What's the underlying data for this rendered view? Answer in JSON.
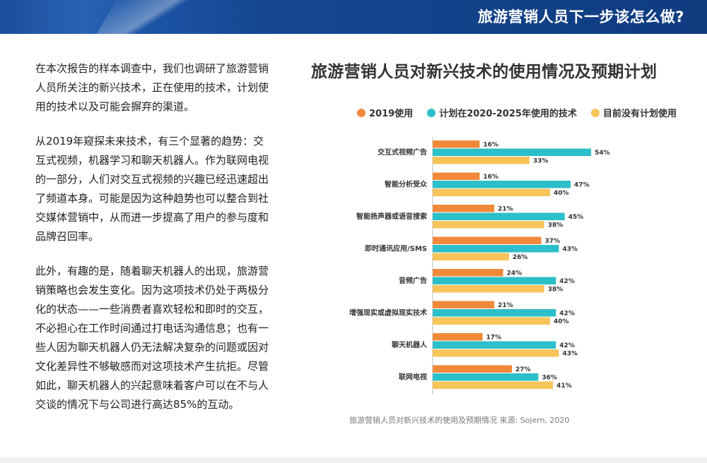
{
  "header": {
    "title": "旅游营销人员下一步该怎么做?"
  },
  "intro": {
    "paragraphs": [
      "在本次报告的样本调查中，我们也调研了旅游营销\n人员所关注的新兴技术，正在使用的技术，计划使\n用的技术以及可能会摒弃的渠道。",
      "从2019年窥探未来技术，有三个显著的趋势：交\n互式视频，机器学习和聊天机器人。作为联网电视\n的一部分，人们对交互式视频的兴趣已经迅速超出\n了频道本身。可能是因为这种趋势也可以整合到社\n交媒体营销中，从而进一步提高了用户的参与度和\n品牌召回率。",
      "此外，有趣的是，随着聊天机器人的出现，旅游营\n销策略也会发生变化。因为这项技术仍处于两极分\n化的状态——一些消费者喜欢轻松和即时的交互，\n不必担心在工作时间通过打电话沟通信息；也有一\n些人因为聊天机器人仍无法解决复杂的问题或因对\n文化差异性不够敏感而对这项技术产生抗拒。尽管\n如此，聊天机器人的兴起意味着客户可以在不与人\n交谈的情况下与公司进行高达85%的互动。"
    ]
  },
  "chart_data": {
    "type": "bar",
    "orientation": "horizontal",
    "title": "旅游营销人员对新兴技术的使用情况及预期计划",
    "categories": [
      "交互式视频广告",
      "智能分析受众",
      "智能扬声器或语音搜索",
      "即时通讯应用/SMS",
      "音频广告",
      "增强现实或虚拟现实技术",
      "聊天机器人",
      "联网电视"
    ],
    "series": [
      {
        "name": "2019使用",
        "color": "#f08a3a",
        "values": [
          16,
          16,
          21,
          37,
          24,
          21,
          17,
          27
        ]
      },
      {
        "name": "计划在2020-2025年使用的技术",
        "color": "#2bbfc9",
        "values": [
          54,
          47,
          45,
          43,
          42,
          42,
          42,
          36
        ]
      },
      {
        "name": "目前没有计划使用",
        "color": "#f7c45a",
        "values": [
          33,
          40,
          38,
          26,
          38,
          40,
          43,
          41
        ]
      }
    ],
    "value_suffix": "%",
    "xlim": [
      0,
      100
    ],
    "legend_position": "top",
    "grid": false
  },
  "source_note": "旅游营销人员对新兴技术的使用及预期情况  来源: Sojern, 2020"
}
